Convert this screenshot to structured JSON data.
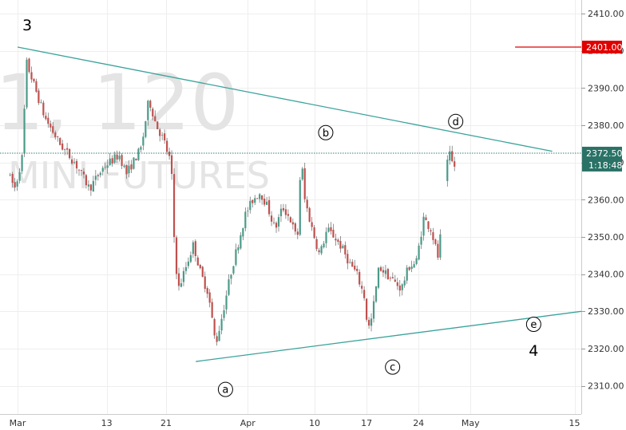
{
  "watermark": {
    "line1": "1, 120",
    "line2": "MINI FUTURES"
  },
  "colors": {
    "trendline": "#3aa39a",
    "candle_up": "#4a9a88",
    "candle_down": "#c0504d",
    "wick": "#666666",
    "level_line": "#e00000",
    "current_line": "#3a7d74",
    "badge_red": "#e00000",
    "badge_dark": "#2a7266"
  },
  "chart_data": {
    "type": "candlestick",
    "ylim": [
      2300.5,
      2414.5
    ],
    "y_ticks": [
      2310,
      2320,
      2330,
      2340,
      2350,
      2360,
      2370,
      2380,
      2390,
      2400,
      2410
    ],
    "y_tick_labels": [
      "2310.00",
      "2320.00",
      "2330.00",
      "2340.00",
      "2350.00",
      "2360.00",
      "2370.00",
      "2380.00",
      "2390.00",
      "2400.00",
      "2410.00"
    ],
    "x_tick_labels": [
      "Mar",
      "13",
      "21",
      "Apr",
      "10",
      "17",
      "24",
      "May",
      "15"
    ],
    "x_ticks_day": [
      0,
      12,
      20,
      31,
      40,
      47,
      54,
      61,
      75
    ],
    "x_range_day": [
      -1,
      78
    ],
    "price_path": [
      [
        -1,
        2367
      ],
      [
        0,
        2363
      ],
      [
        1,
        2372
      ],
      [
        1.5,
        2397
      ],
      [
        2,
        2394
      ],
      [
        3,
        2388
      ],
      [
        4,
        2382
      ],
      [
        6,
        2375
      ],
      [
        8,
        2370
      ],
      [
        10,
        2363
      ],
      [
        11,
        2366
      ],
      [
        12,
        2369
      ],
      [
        14,
        2372
      ],
      [
        15,
        2367
      ],
      [
        17,
        2374
      ],
      [
        18,
        2387
      ],
      [
        19,
        2380
      ],
      [
        20,
        2376
      ],
      [
        20.6,
        2372
      ],
      [
        21,
        2370
      ],
      [
        21.5,
        2345
      ],
      [
        22,
        2336
      ],
      [
        23,
        2342
      ],
      [
        24,
        2348
      ],
      [
        25,
        2340
      ],
      [
        26,
        2335
      ],
      [
        27,
        2321
      ],
      [
        28,
        2330
      ],
      [
        29,
        2340
      ],
      [
        30,
        2348
      ],
      [
        31,
        2356
      ],
      [
        32,
        2360
      ],
      [
        33,
        2362
      ],
      [
        34,
        2358
      ],
      [
        35,
        2352
      ],
      [
        36,
        2358
      ],
      [
        37,
        2355
      ],
      [
        38,
        2349
      ],
      [
        38.5,
        2372
      ],
      [
        39,
        2360
      ],
      [
        40,
        2352
      ],
      [
        41,
        2345
      ],
      [
        42,
        2352
      ],
      [
        43,
        2350
      ],
      [
        44,
        2347
      ],
      [
        45,
        2343
      ],
      [
        46,
        2340
      ],
      [
        47,
        2334
      ],
      [
        47.5,
        2325
      ],
      [
        48,
        2328
      ],
      [
        49,
        2342
      ],
      [
        50,
        2340
      ],
      [
        51,
        2338
      ],
      [
        52,
        2336
      ],
      [
        53,
        2342
      ],
      [
        54,
        2343
      ],
      [
        55,
        2355
      ],
      [
        56,
        2352
      ],
      [
        57,
        2344
      ],
      [
        58,
        2368
      ],
      [
        58.5,
        2372
      ],
      [
        59,
        2369
      ]
    ],
    "candle_gap_day": [
      57.2,
      57.8
    ],
    "trendlines": [
      {
        "name": "upper",
        "from": [
          0,
          2401
        ],
        "to": [
          72,
          2373
        ]
      },
      {
        "name": "lower",
        "from": [
          24,
          2316.5
        ],
        "to": [
          76,
          2330
        ]
      }
    ],
    "price_level": {
      "value": 2401,
      "label": "2401.00",
      "from_day": 67
    },
    "current_price": {
      "value": 2372.5,
      "label": "2372.50",
      "countdown": "1:18:48"
    },
    "wave_labels": [
      {
        "text": "3",
        "day": 1.3,
        "price": 2407,
        "style": "big"
      },
      {
        "text": "a",
        "day": 28,
        "price": 2309,
        "style": "circle"
      },
      {
        "text": "b",
        "day": 41.5,
        "price": 2378,
        "style": "circle"
      },
      {
        "text": "c",
        "day": 50.5,
        "price": 2315,
        "style": "circle"
      },
      {
        "text": "d",
        "day": 59,
        "price": 2381,
        "style": "circle"
      },
      {
        "text": "e",
        "day": 69.5,
        "price": 2326.5,
        "style": "circle"
      },
      {
        "text": "4",
        "day": 69.5,
        "price": 2319.5,
        "style": "big"
      }
    ]
  }
}
